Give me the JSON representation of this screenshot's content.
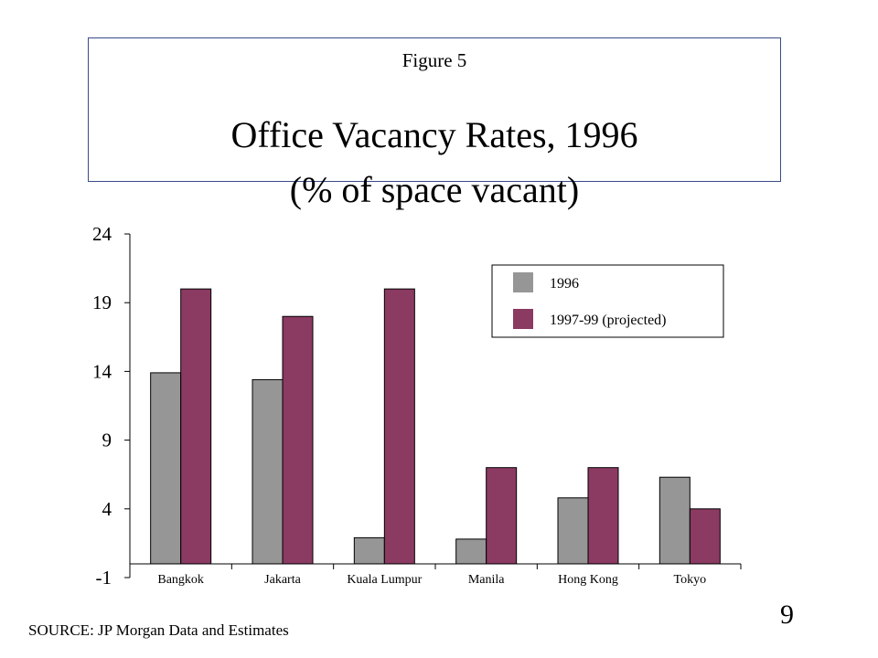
{
  "header": {
    "figure_label": "Figure 5",
    "title": "Office Vacancy Rates, 1996",
    "subtitle": "(% of space vacant)"
  },
  "chart_data": {
    "type": "bar",
    "title": "Office Vacancy Rates, 1996",
    "subtitle": "(% of space vacant)",
    "xlabel": "",
    "ylabel": "",
    "categories": [
      "Bangkok",
      "Jakarta",
      "Kuala Lumpur",
      "Manila",
      "Hong Kong",
      "Tokyo"
    ],
    "series": [
      {
        "name": "1996",
        "color": "#969696",
        "values": [
          13.9,
          13.4,
          1.9,
          1.8,
          4.8,
          6.3
        ]
      },
      {
        "name": "1997-99 (projected)",
        "color": "#8b3a62",
        "values": [
          20.0,
          18.0,
          20.0,
          7.0,
          7.0,
          4.0
        ]
      }
    ],
    "ylim": [
      -1,
      24
    ],
    "yticks": [
      "24",
      "19",
      "14",
      "9",
      "4",
      "-1"
    ],
    "legend": "top-right",
    "grid": false
  },
  "footer": {
    "source": "SOURCE: JP Morgan Data and Estimates",
    "page_number": "9"
  }
}
